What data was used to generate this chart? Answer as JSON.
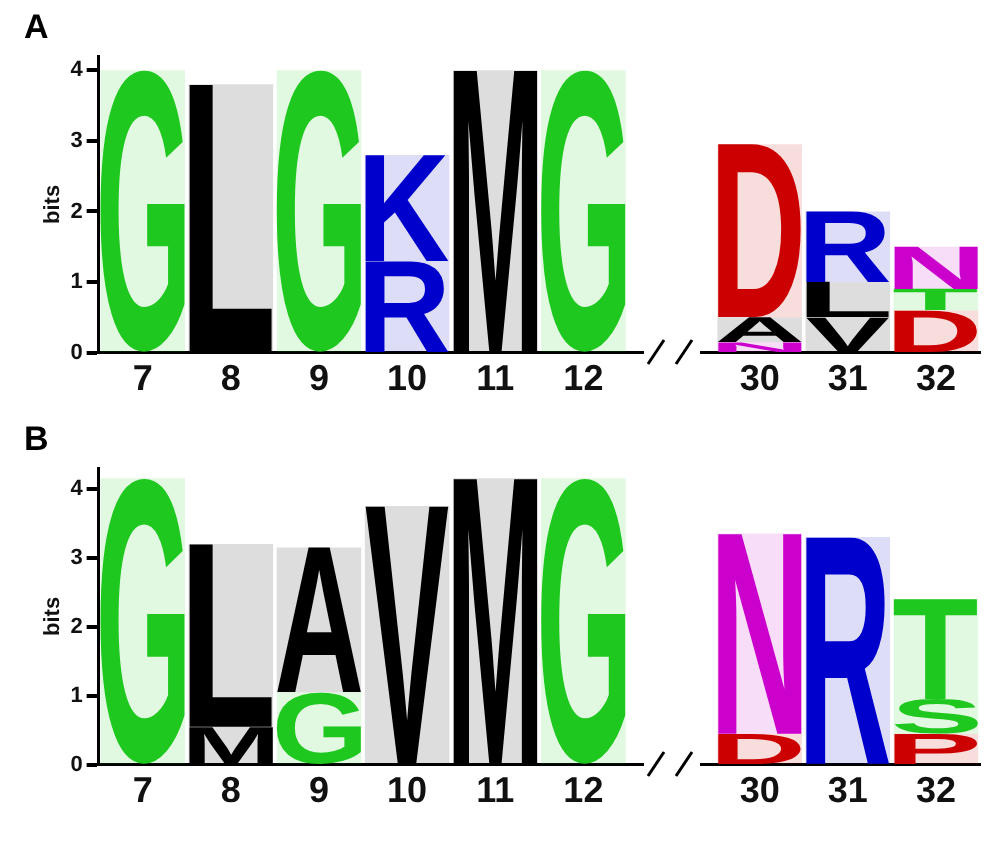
{
  "chart_data": [
    {
      "type": "bar",
      "title": "A",
      "ylabel": "bits",
      "stacked": true,
      "grid": false,
      "legend": false,
      "categories": [
        "7",
        "8",
        "9",
        "10",
        "11",
        "12",
        null,
        "30",
        "31",
        "32"
      ],
      "ylim": [
        0,
        4.2
      ],
      "yticks": [
        0,
        1,
        2,
        3,
        4
      ],
      "series": [
        {
          "colors": [
            "#1ec81e",
            "#000000",
            "#1ec81e",
            "#0000cc",
            "#000000",
            "#1ec81e",
            null,
            "#cc00cc",
            "#000000",
            "#cc0000"
          ],
          "values": [
            4.0,
            3.8,
            4.0,
            1.3,
            4.0,
            4.0,
            null,
            0.15,
            0.5,
            0.6
          ],
          "value_labels": [
            "G",
            "L",
            "G",
            "R",
            "M",
            "G",
            null,
            "N",
            "V",
            "D"
          ]
        },
        {
          "colors": [
            null,
            null,
            null,
            "#0000cc",
            null,
            null,
            null,
            "#000000",
            "#000000",
            "#1ec81e"
          ],
          "values": [
            null,
            null,
            null,
            1.5,
            null,
            null,
            null,
            0.35,
            0.5,
            0.3
          ],
          "value_labels": [
            null,
            null,
            null,
            "K",
            null,
            null,
            null,
            "A",
            "L",
            "T"
          ]
        },
        {
          "colors": [
            null,
            null,
            null,
            null,
            null,
            null,
            null,
            "#cc0000",
            "#0000cc",
            "#cc00cc"
          ],
          "values": [
            null,
            null,
            null,
            null,
            null,
            null,
            null,
            2.45,
            1.0,
            0.6
          ],
          "value_labels": [
            null,
            null,
            null,
            null,
            null,
            null,
            null,
            "D",
            "R",
            "N"
          ]
        }
      ]
    },
    {
      "type": "bar",
      "title": "B",
      "ylabel": "bits",
      "stacked": true,
      "grid": false,
      "legend": false,
      "categories": [
        "7",
        "8",
        "9",
        "10",
        "11",
        "12",
        null,
        "30",
        "31",
        "32"
      ],
      "ylim": [
        0,
        4.3
      ],
      "yticks": [
        0,
        1,
        2,
        3,
        4
      ],
      "series": [
        {
          "colors": [
            "#1ec81e",
            "#000000",
            "#1ec81e",
            "#000000",
            "#000000",
            "#1ec81e",
            null,
            "#cc0000",
            "#0000cc",
            "#cc0000"
          ],
          "values": [
            4.15,
            0.55,
            1.05,
            3.75,
            4.15,
            4.15,
            null,
            0.45,
            3.3,
            0.45
          ],
          "value_labels": [
            "G",
            "M",
            "G",
            "V",
            "M",
            "G",
            null,
            "D",
            "R",
            "P"
          ]
        },
        {
          "colors": [
            null,
            "#000000",
            "#000000",
            null,
            null,
            null,
            null,
            "#cc00cc",
            null,
            "#1ec81e"
          ],
          "values": [
            null,
            2.65,
            2.1,
            null,
            null,
            null,
            null,
            2.9,
            null,
            0.5
          ],
          "value_labels": [
            null,
            "L",
            "A",
            null,
            null,
            null,
            null,
            "N",
            null,
            "S"
          ]
        },
        {
          "colors": [
            null,
            null,
            null,
            null,
            null,
            null,
            null,
            null,
            null,
            "#1ec81e"
          ],
          "values": [
            null,
            null,
            null,
            null,
            null,
            null,
            null,
            null,
            null,
            1.45
          ],
          "value_labels": [
            null,
            null,
            null,
            null,
            null,
            null,
            null,
            null,
            null,
            "T"
          ]
        }
      ]
    }
  ]
}
